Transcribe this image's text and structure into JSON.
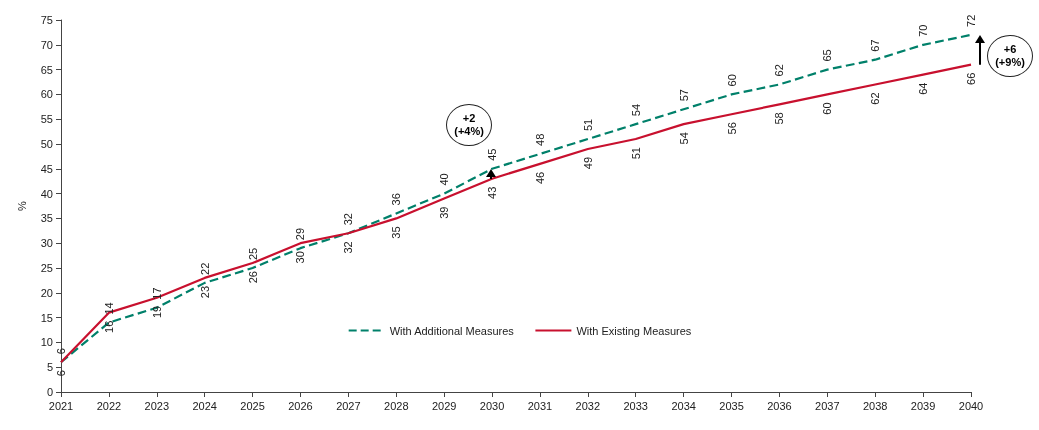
{
  "chart_data": {
    "type": "line",
    "ylabel": "%",
    "categories": [
      "2021",
      "2022",
      "2023",
      "2024",
      "2025",
      "2026",
      "2027",
      "2028",
      "2029",
      "2030",
      "2031",
      "2032",
      "2033",
      "2034",
      "2035",
      "2036",
      "2037",
      "2038",
      "2039",
      "2040"
    ],
    "series": [
      {
        "name": "With Additional Measures",
        "color": "#00806a",
        "line_style": "dashed",
        "values": [
          6,
          14,
          17,
          22,
          25,
          29,
          32,
          36,
          40,
          45,
          48,
          51,
          54,
          57,
          60,
          62,
          65,
          67,
          70,
          72
        ]
      },
      {
        "name": "With Existing Measures",
        "color": "#c8102e",
        "line_style": "solid",
        "values": [
          6,
          16,
          19,
          23,
          26,
          30,
          32,
          35,
          39,
          43,
          46,
          49,
          51,
          54,
          56,
          58,
          60,
          62,
          64,
          66
        ]
      }
    ],
    "ylim": [
      0,
      75
    ],
    "yticks": [
      0,
      5,
      10,
      15,
      20,
      25,
      30,
      35,
      40,
      45,
      50,
      55,
      60,
      65,
      70,
      75
    ],
    "grid": false,
    "legend": "bottom",
    "marker": "none",
    "data_labels": true,
    "annotations": [
      "+2\n(+4%)",
      "+6\n(+9%)"
    ]
  }
}
